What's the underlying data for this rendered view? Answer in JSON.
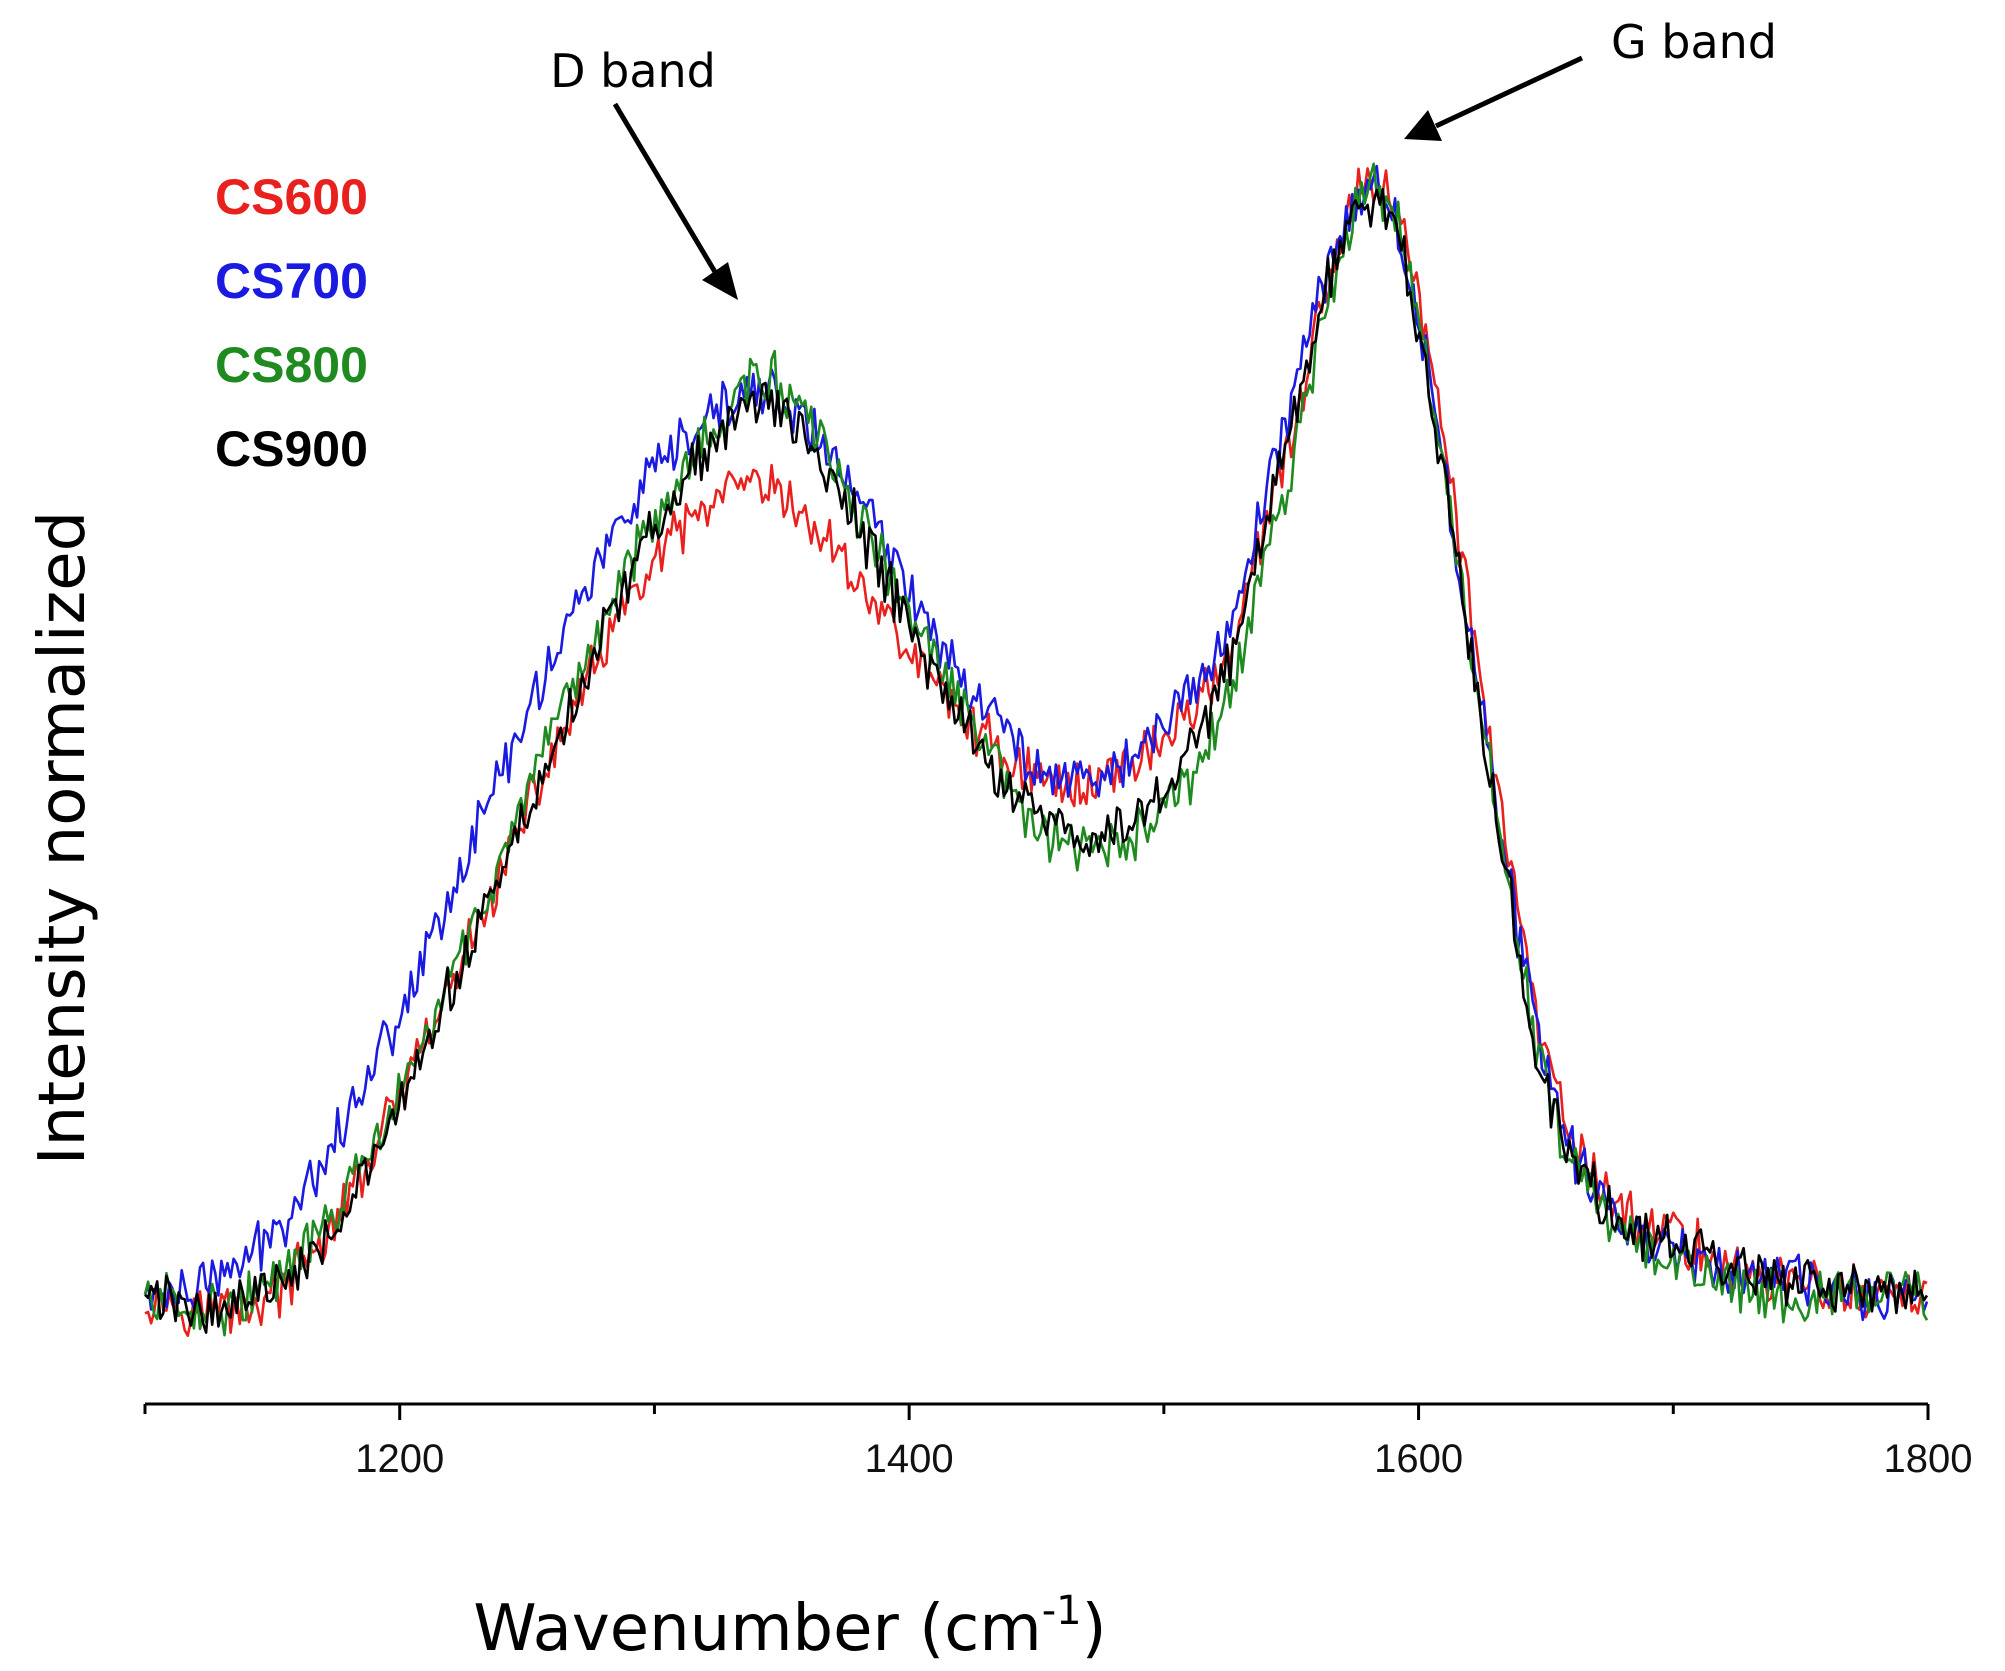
{
  "chart_data": {
    "type": "line",
    "title": "",
    "xlabel": "Wavenumber (cm",
    "xlabel_superscript": "-1",
    "xlabel_close": ")",
    "ylabel": "Intensity normalized",
    "xlim": [
      1100,
      1800
    ],
    "ylim": [
      0,
      1
    ],
    "x_ticks": [
      1200,
      1400,
      1600,
      1800
    ],
    "x_minor_ticks": [
      1100,
      1300,
      1500,
      1700
    ],
    "x_tick_labels": [
      "1200",
      "1400",
      "1600",
      "1800"
    ],
    "legend_position": "top-left",
    "annotations": [
      {
        "text": "D band",
        "x": 1340
      },
      {
        "text": "G band",
        "x": 1587
      }
    ],
    "x": [
      1100,
      1125,
      1150,
      1175,
      1200,
      1225,
      1250,
      1275,
      1300,
      1325,
      1340,
      1350,
      1375,
      1400,
      1425,
      1450,
      1465,
      1475,
      1500,
      1525,
      1550,
      1570,
      1585,
      1600,
      1625,
      1650,
      1675,
      1700,
      1725,
      1750,
      1775,
      1800
    ],
    "series": [
      {
        "name": "CS600",
        "color": "#e8211e",
        "values": [
          0.06,
          0.05,
          0.06,
          0.12,
          0.22,
          0.33,
          0.45,
          0.56,
          0.65,
          0.7,
          0.71,
          0.7,
          0.65,
          0.58,
          0.52,
          0.48,
          0.47,
          0.48,
          0.51,
          0.58,
          0.75,
          0.91,
          0.96,
          0.86,
          0.55,
          0.25,
          0.14,
          0.11,
          0.08,
          0.07,
          0.06,
          0.06
        ]
      },
      {
        "name": "CS700",
        "color": "#1a1ae0",
        "values": [
          0.06,
          0.07,
          0.11,
          0.19,
          0.29,
          0.41,
          0.53,
          0.64,
          0.72,
          0.77,
          0.79,
          0.78,
          0.72,
          0.63,
          0.55,
          0.49,
          0.48,
          0.48,
          0.52,
          0.6,
          0.78,
          0.92,
          0.95,
          0.84,
          0.53,
          0.24,
          0.13,
          0.1,
          0.08,
          0.07,
          0.06,
          0.06
        ]
      },
      {
        "name": "CS800",
        "color": "#1f8a1f",
        "values": [
          0.06,
          0.05,
          0.07,
          0.13,
          0.22,
          0.34,
          0.46,
          0.58,
          0.69,
          0.76,
          0.8,
          0.79,
          0.71,
          0.61,
          0.52,
          0.44,
          0.42,
          0.42,
          0.45,
          0.54,
          0.73,
          0.9,
          0.95,
          0.84,
          0.52,
          0.23,
          0.12,
          0.09,
          0.07,
          0.06,
          0.06,
          0.06
        ]
      },
      {
        "name": "CS900",
        "color": "#000000",
        "values": [
          0.06,
          0.05,
          0.07,
          0.12,
          0.21,
          0.33,
          0.45,
          0.57,
          0.68,
          0.75,
          0.78,
          0.77,
          0.7,
          0.6,
          0.51,
          0.45,
          0.43,
          0.43,
          0.47,
          0.57,
          0.76,
          0.91,
          0.94,
          0.83,
          0.52,
          0.23,
          0.13,
          0.1,
          0.08,
          0.07,
          0.06,
          0.06
        ]
      }
    ]
  }
}
